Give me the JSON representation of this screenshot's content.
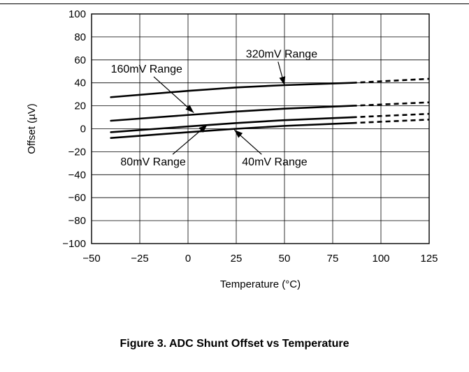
{
  "figure_caption": "Figure 3. ADC Shunt Offset vs Temperature",
  "chart_data": {
    "type": "line",
    "title": "",
    "xlabel": "Temperature (°C)",
    "ylabel": "Offset (µV)",
    "xlim": [
      -50,
      125
    ],
    "ylim": [
      -100,
      100
    ],
    "x_ticks": [
      -50,
      -25,
      0,
      25,
      50,
      75,
      100,
      125
    ],
    "y_ticks": [
      -100,
      -80,
      -60,
      -40,
      -20,
      0,
      20,
      40,
      60,
      80,
      100
    ],
    "x_tick_labels": [
      "−50",
      "−25",
      "0",
      "25",
      "50",
      "75",
      "100",
      "125"
    ],
    "y_tick_labels": [
      "−100",
      "−80",
      "−60",
      "−40",
      "−20",
      "0",
      "20",
      "40",
      "60",
      "80",
      "100"
    ],
    "grid": true,
    "legend": "none",
    "series": [
      {
        "name": "320mV Range",
        "solid": {
          "x": [
            -40,
            0,
            25,
            50,
            85
          ],
          "y": [
            27.5,
            33,
            36,
            38,
            40
          ]
        },
        "dashed": {
          "x": [
            85,
            125
          ],
          "y": [
            40,
            43.5
          ]
        }
      },
      {
        "name": "160mV Range",
        "solid": {
          "x": [
            -40,
            0,
            25,
            50,
            85
          ],
          "y": [
            7,
            12,
            15,
            17.5,
            20
          ]
        },
        "dashed": {
          "x": [
            85,
            125
          ],
          "y": [
            20,
            23
          ]
        }
      },
      {
        "name": "80mV Range",
        "solid": {
          "x": [
            -40,
            0,
            25,
            50,
            85
          ],
          "y": [
            -3,
            2,
            5,
            7.5,
            10
          ]
        },
        "dashed": {
          "x": [
            85,
            125
          ],
          "y": [
            10,
            13
          ]
        }
      },
      {
        "name": "40mV Range",
        "solid": {
          "x": [
            -40,
            0,
            25,
            50,
            85
          ],
          "y": [
            -8,
            -3,
            0,
            2.5,
            5
          ]
        },
        "dashed": {
          "x": [
            85,
            125
          ],
          "y": [
            5,
            8
          ]
        }
      }
    ],
    "annotations": [
      {
        "text": "320mV Range",
        "series": 0,
        "arrow_to": [
          50,
          38
        ],
        "text_at": [
          30,
          62
        ]
      },
      {
        "text": "160mV Range",
        "series": 1,
        "arrow_to": [
          3,
          14
        ],
        "text_at": [
          -40,
          49
        ]
      },
      {
        "text": "80mV Range",
        "series": 2,
        "arrow_to": [
          10,
          3.5
        ],
        "text_at": [
          -35,
          -32
        ]
      },
      {
        "text": "40mV Range",
        "series": 3,
        "arrow_to": [
          24,
          -1
        ],
        "text_at": [
          28,
          -32
        ]
      }
    ]
  }
}
